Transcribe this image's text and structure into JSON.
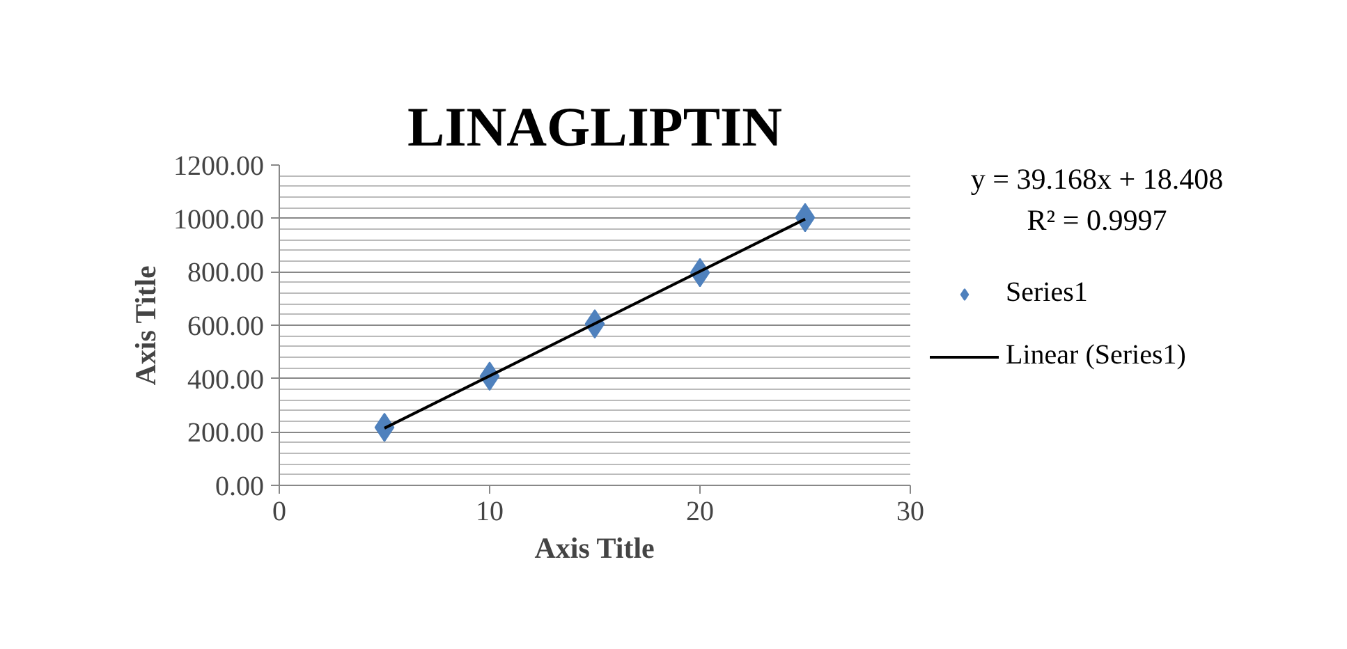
{
  "chart_data": {
    "type": "scatter",
    "title": "LINAGLIPTIN",
    "xlabel": "Axis Title",
    "ylabel": "Axis Title",
    "x": [
      5,
      10,
      15,
      20,
      25
    ],
    "series": [
      {
        "name": "Series1",
        "color": "#4f81bd",
        "values": [
          217,
          409,
          605,
          797,
          1003
        ],
        "marker": "diamond"
      },
      {
        "name": "Linear (Series1)",
        "type": "line",
        "color": "#000000",
        "x": [
          5,
          25
        ],
        "values": [
          214.2,
          997.6
        ],
        "marker": "none",
        "line_style": "solid"
      }
    ],
    "xlim": [
      0,
      30
    ],
    "xticks": [
      0,
      10,
      20,
      30
    ],
    "ylim": [
      0,
      1200
    ],
    "yticks": [
      {
        "value": 0,
        "label": "0.00"
      },
      {
        "value": 200,
        "label": "200.00"
      },
      {
        "value": 400,
        "label": "400.00"
      },
      {
        "value": 600,
        "label": "600.00"
      },
      {
        "value": 800,
        "label": "800.00"
      },
      {
        "value": 1000,
        "label": "1000.00"
      },
      {
        "value": 1200,
        "label": "1200.00"
      }
    ],
    "grid": "y",
    "legend": "right",
    "annotations": [
      "y = 39.168x + 18.408",
      "R² = 0.9997"
    ]
  }
}
